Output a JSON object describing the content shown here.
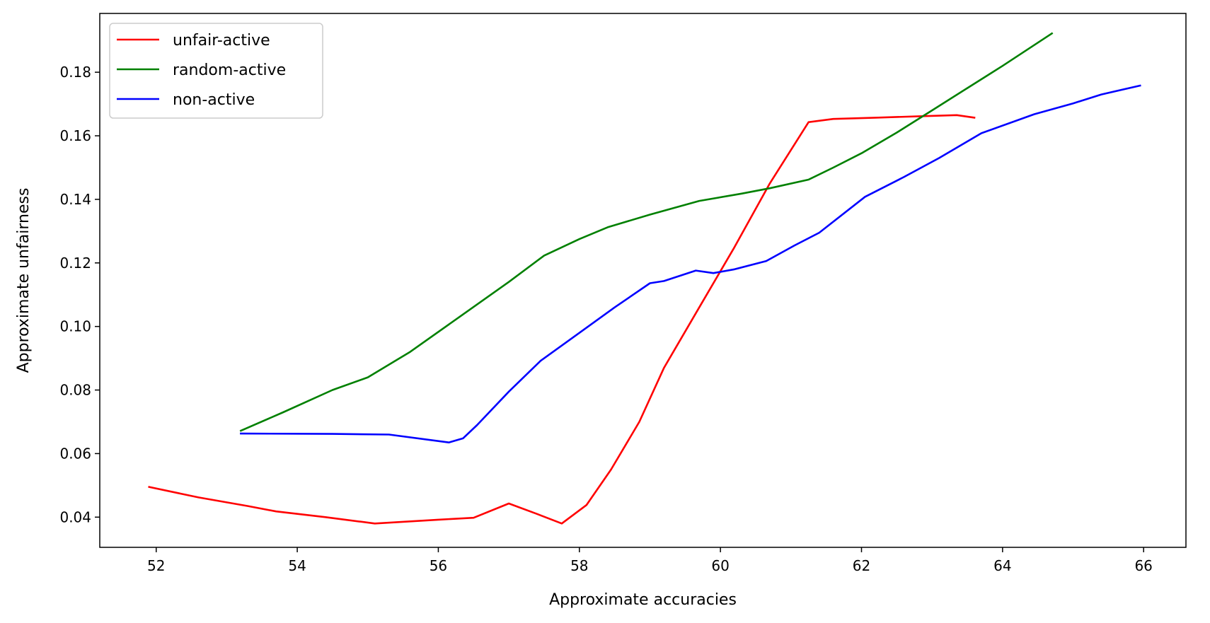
{
  "chart_data": {
    "type": "line",
    "title": "",
    "xlabel": "Approximate accuracies",
    "ylabel": "Approximate unfairness",
    "xlim": [
      51.2,
      66.6
    ],
    "ylim": [
      0.0305,
      0.1985
    ],
    "x_ticks": [
      52,
      54,
      56,
      58,
      60,
      62,
      64,
      66
    ],
    "y_ticks": [
      0.04,
      0.06,
      0.08,
      0.1,
      0.12,
      0.14,
      0.16,
      0.18
    ],
    "x_tick_labels": [
      "52",
      "54",
      "56",
      "58",
      "60",
      "62",
      "64",
      "66"
    ],
    "y_tick_labels": [
      "0.04",
      "0.06",
      "0.08",
      "0.10",
      "0.12",
      "0.14",
      "0.16",
      "0.18"
    ],
    "grid": false,
    "legend_position": "top-left",
    "series": [
      {
        "name": "unfair-active",
        "color": "#ff0000",
        "x": [
          51.9,
          52.6,
          53.3,
          53.7,
          54.4,
          55.1,
          56.0,
          56.5,
          57.0,
          57.4,
          57.75,
          58.1,
          58.45,
          58.85,
          59.2,
          59.7,
          60.2,
          60.7,
          61.25,
          61.6,
          62.2,
          62.9,
          63.35,
          63.6
        ],
        "y": [
          0.0495,
          0.0462,
          0.0435,
          0.0418,
          0.04,
          0.038,
          0.0392,
          0.0398,
          0.0443,
          0.041,
          0.038,
          0.0438,
          0.055,
          0.07,
          0.087,
          0.106,
          0.125,
          0.145,
          0.1643,
          0.1653,
          0.1657,
          0.1662,
          0.1665,
          0.1657
        ]
      },
      {
        "name": "random-active",
        "color": "#008000",
        "x": [
          53.2,
          53.8,
          54.5,
          55.0,
          55.6,
          56.3,
          57.0,
          57.5,
          58.0,
          58.4,
          59.0,
          59.7,
          60.3,
          60.7,
          61.25,
          61.6,
          62.0,
          62.5,
          63.0,
          63.5,
          64.0,
          64.7
        ],
        "y": [
          0.0672,
          0.073,
          0.08,
          0.084,
          0.092,
          0.103,
          0.114,
          0.1223,
          0.1275,
          0.1312,
          0.1352,
          0.1395,
          0.1418,
          0.1435,
          0.1462,
          0.15,
          0.1545,
          0.161,
          0.168,
          0.175,
          0.182,
          0.1922
        ]
      },
      {
        "name": "non-active",
        "color": "#0000ff",
        "x": [
          53.2,
          54.5,
          55.3,
          56.15,
          56.35,
          56.55,
          57.0,
          57.45,
          58.0,
          58.5,
          59.0,
          59.2,
          59.65,
          59.9,
          60.2,
          60.65,
          61.05,
          61.4,
          62.05,
          62.6,
          63.1,
          63.7,
          64.45,
          65.0,
          65.4,
          65.95
        ],
        "y": [
          0.0663,
          0.0662,
          0.066,
          0.0635,
          0.0648,
          0.069,
          0.0795,
          0.0892,
          0.098,
          0.106,
          0.1136,
          0.1143,
          0.1176,
          0.1168,
          0.118,
          0.1206,
          0.1255,
          0.1295,
          0.1408,
          0.147,
          0.153,
          0.1608,
          0.1668,
          0.1702,
          0.173,
          0.1758
        ]
      }
    ]
  }
}
